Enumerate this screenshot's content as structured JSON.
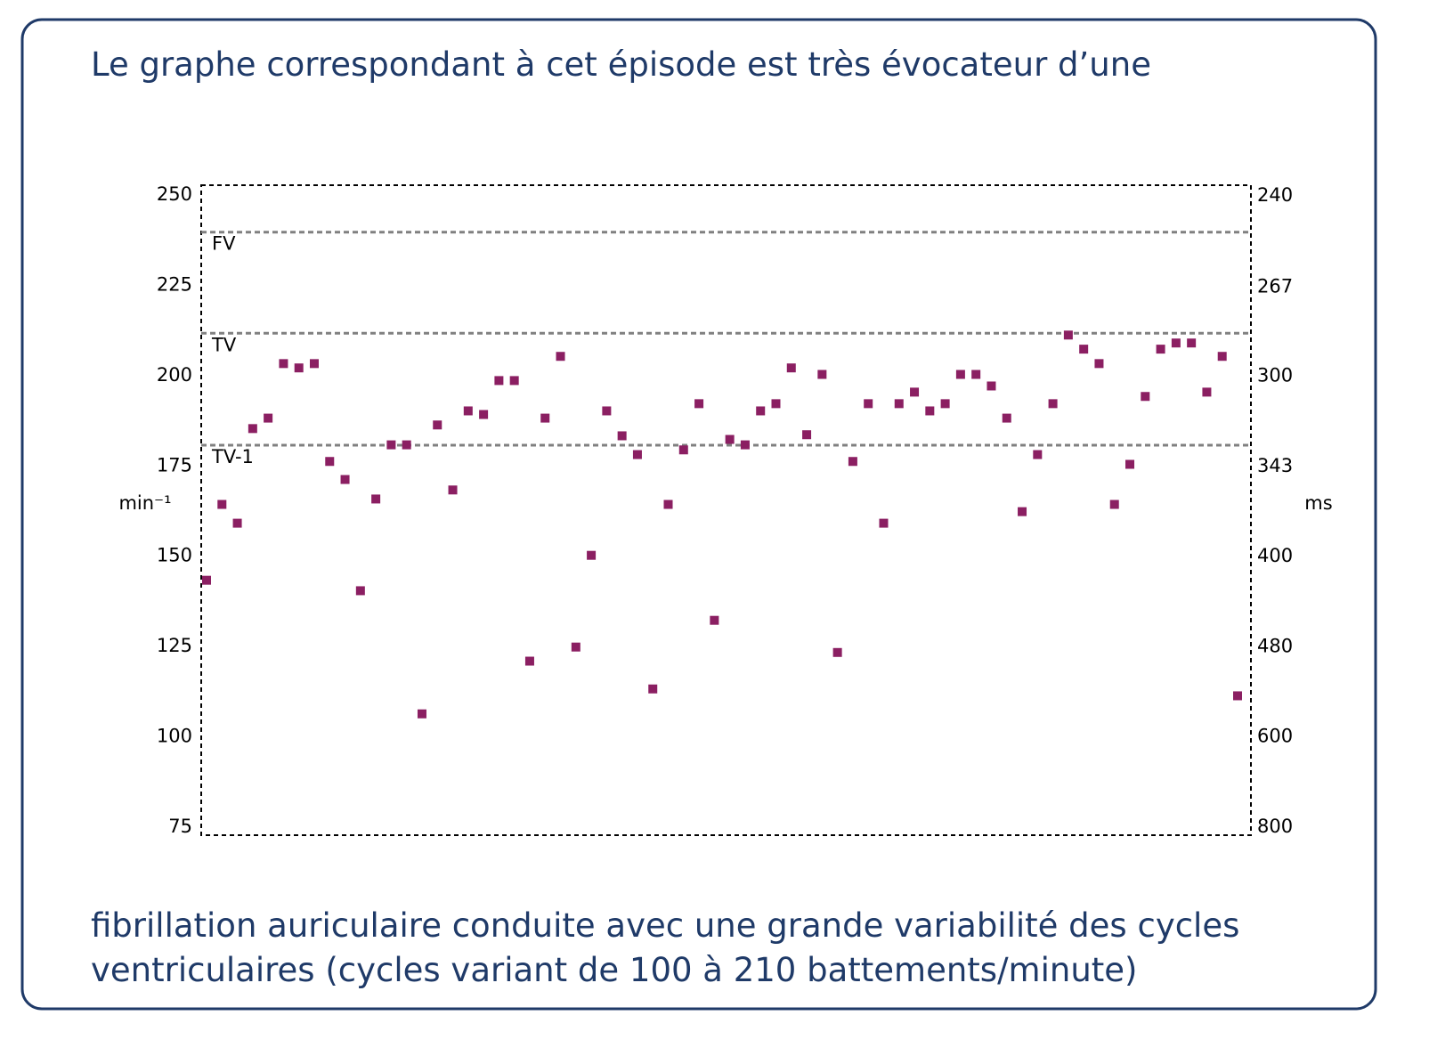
{
  "chart_data": {
    "type": "scatter",
    "title": "Le graphe correspondant à cet épisode est très évocateur d’une",
    "caption": [
      "fibrillation auriculaire conduite avec une grande variabilité des cycles",
      "ventriculaires (cycles variant de 100 à 210 battements/minute)"
    ],
    "ylabel": "min⁻¹",
    "y2label": "ms",
    "values": [
      143.6,
      164.6,
      159.4,
      185.6,
      188.5,
      203.6,
      202.4,
      203.6,
      176.5,
      171.5,
      140.7,
      166.1,
      181.1,
      181.1,
      106.6,
      186.6,
      168.6,
      190.5,
      189.5,
      198.9,
      198.9,
      121.2,
      188.5,
      205.6,
      125.1,
      150.5,
      190.5,
      183.6,
      178.4,
      113.5,
      164.6,
      179.7,
      192.5,
      132.5,
      182.6,
      181.1,
      190.5,
      192.5,
      202.4,
      183.9,
      200.6,
      123.6,
      176.5,
      192.5,
      159.4,
      192.5,
      195.7,
      190.5,
      192.5,
      200.6,
      200.6,
      197.4,
      188.5,
      162.6,
      178.4,
      192.5,
      211.5,
      207.6,
      203.6,
      164.6,
      175.7,
      194.5,
      207.6,
      209.3,
      209.3,
      195.7,
      205.6,
      111.6
    ],
    "color": "#8b1f62",
    "ylim": [
      73,
      253
    ],
    "yticks": [
      75,
      100,
      125,
      150,
      175,
      200,
      225,
      250
    ],
    "y2lim": [
      822,
      237
    ],
    "y2scale": "reciprocal",
    "y2ticks": [
      800,
      600,
      480,
      400,
      343,
      300,
      267,
      240
    ],
    "reference_lines": [
      {
        "value": 240,
        "label": "FV"
      },
      {
        "value": 212,
        "label": "TV"
      },
      {
        "value": 181,
        "label": "TV-1"
      }
    ],
    "reference_color": "#808080"
  }
}
